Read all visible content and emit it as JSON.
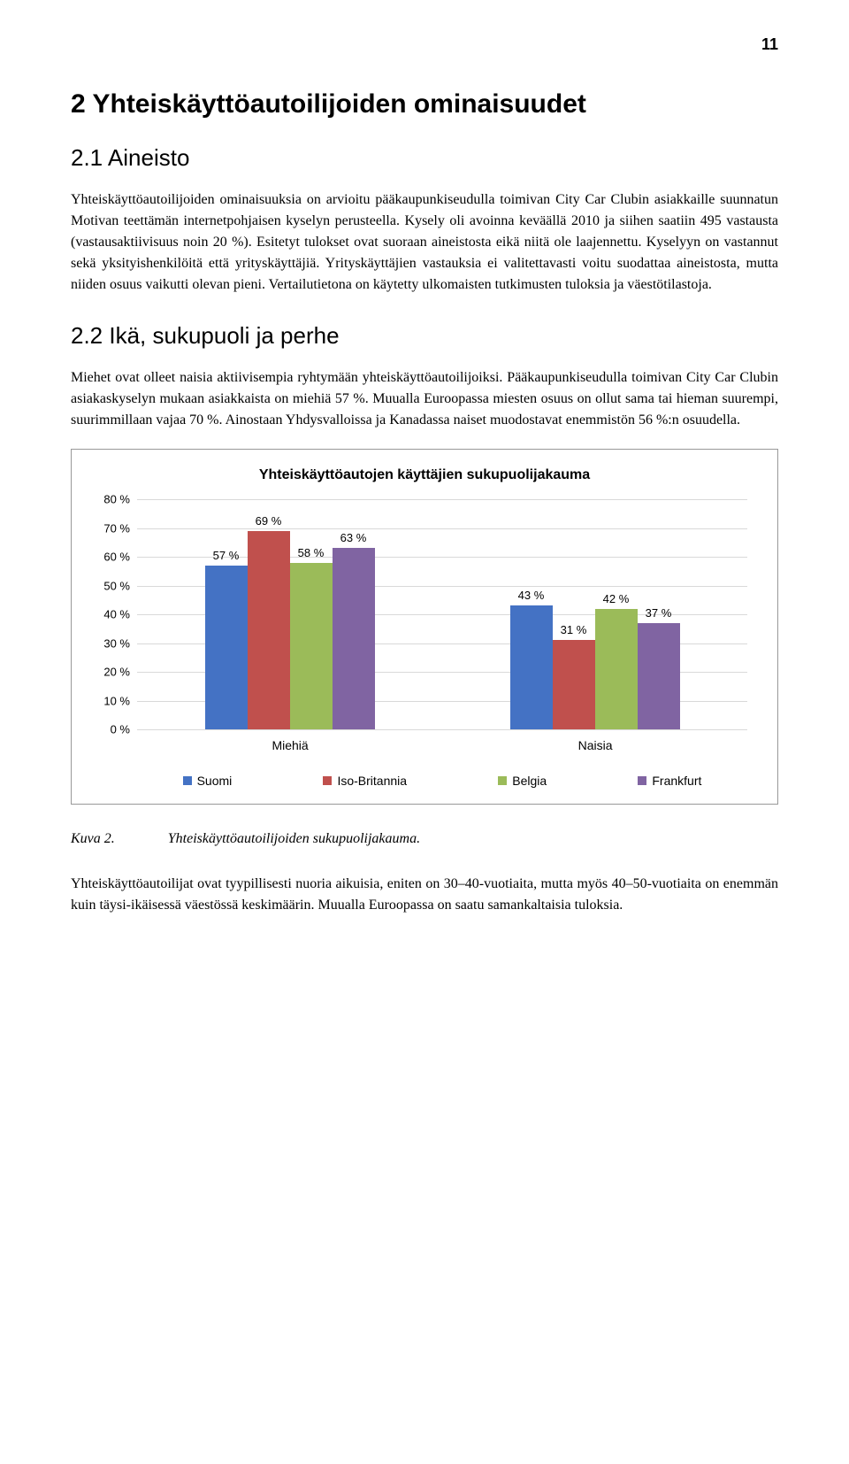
{
  "page_number": "11",
  "heading_main": "2 Yhteiskäyttöautoilijoiden ominaisuudet",
  "heading_sub1": "2.1 Aineisto",
  "paragraph1": "Yhteiskäyttöautoilijoiden ominaisuuksia on arvioitu pääkaupunkiseudulla toimivan City Car Clubin asiakkaille suunnatun Motivan teettämän internetpohjaisen kyselyn perusteella. Kysely oli avoinna keväällä 2010 ja siihen saatiin 495 vastausta (vastausaktiivisuus noin 20 %). Esitetyt tulokset ovat suoraan aineistosta eikä niitä ole laajennettu. Kyselyyn on vastannut sekä yksityishenkilöitä että yrityskäyttäjiä. Yrityskäyttäjien vastauksia ei valitettavasti voitu suodattaa aineistosta, mutta niiden osuus vaikutti olevan pieni. Vertailutietona on käytetty ulkomaisten tutkimusten tuloksia ja väestötilastoja.",
  "heading_sub2": "2.2 Ikä, sukupuoli ja perhe",
  "paragraph2": "Miehet ovat olleet naisia aktiivisempia ryhtymään yhteiskäyttöautoilijoiksi. Pääkaupunkiseudulla toimivan City Car Clubin asiakaskyselyn mukaan asiakkaista on miehiä 57 %. Muualla Euroopassa miesten osuus on ollut sama tai hieman suurempi, suurimmillaan vajaa 70 %. Ainostaan Yhdysvalloissa ja Kanadassa naiset muodostavat enemmistön 56 %:n osuudella.",
  "chart": {
    "title": "Yhteiskäyttöautojen käyttäjien sukupuolijakauma",
    "ymax": 80,
    "ytick_step": 10,
    "yticks": [
      {
        "v": 0,
        "label": "0 %"
      },
      {
        "v": 10,
        "label": "10 %"
      },
      {
        "v": 20,
        "label": "20 %"
      },
      {
        "v": 30,
        "label": "30 %"
      },
      {
        "v": 40,
        "label": "40 %"
      },
      {
        "v": 50,
        "label": "50 %"
      },
      {
        "v": 60,
        "label": "60 %"
      },
      {
        "v": 70,
        "label": "70 %"
      },
      {
        "v": 80,
        "label": "80 %"
      }
    ],
    "categories": [
      "Miehiä",
      "Naisia"
    ],
    "series": [
      {
        "name": "Suomi",
        "color": "#4472c4",
        "values": [
          57,
          43
        ]
      },
      {
        "name": "Iso-Britannia",
        "color": "#c0504d",
        "values": [
          69,
          31
        ]
      },
      {
        "name": "Belgia",
        "color": "#9bbb59",
        "values": [
          58,
          42
        ]
      },
      {
        "name": "Frankfurt",
        "color": "#8064a2",
        "values": [
          63,
          37
        ]
      }
    ],
    "grid_color": "#d9d9d9",
    "background_color": "#ffffff",
    "bar_label_suffix": " %",
    "label_fontsize": 13
  },
  "caption_label": "Kuva 2.",
  "caption_text": "Yhteiskäyttöautoilijoiden sukupuolijakauma.",
  "paragraph3": "Yhteiskäyttöautoilijat ovat tyypillisesti nuoria aikuisia, eniten on 30–40-vuotiaita, mutta myös 40–50-vuotiaita on enemmän kuin täysi-ikäisessä väestössä keskimäärin. Muualla Euroopassa on saatu samankaltaisia tuloksia."
}
